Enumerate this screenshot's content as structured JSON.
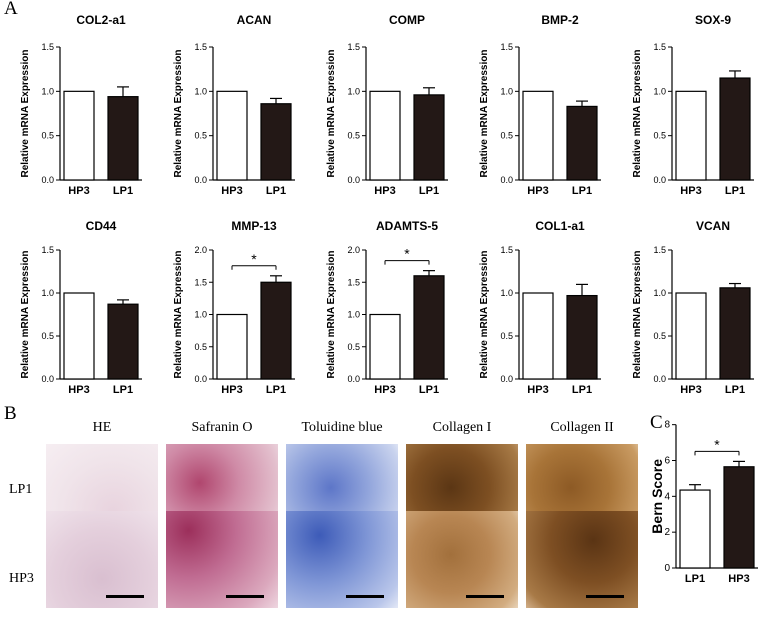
{
  "panels": {
    "a": "A",
    "b": "B",
    "c": "C"
  },
  "charts_a": [
    {
      "title": "COL2-a1",
      "ylabel": "Relative mRNA Expression",
      "categories": [
        "HP3",
        "LP1"
      ],
      "values": [
        1.0,
        0.94
      ],
      "errors": [
        0,
        0.11
      ],
      "ylim": [
        0,
        1.5
      ],
      "ticks": [
        "0.0",
        "0.5",
        "1.0",
        "1.5"
      ],
      "significance": ""
    },
    {
      "title": "ACAN",
      "ylabel": "Relative mRNA Expression",
      "categories": [
        "HP3",
        "LP1"
      ],
      "values": [
        1.0,
        0.86
      ],
      "errors": [
        0,
        0.06
      ],
      "ylim": [
        0,
        1.5
      ],
      "ticks": [
        "0.0",
        "0.5",
        "1.0",
        "1.5"
      ],
      "significance": ""
    },
    {
      "title": "COMP",
      "ylabel": "Relative mRNA Expression",
      "categories": [
        "HP3",
        "LP1"
      ],
      "values": [
        1.0,
        0.96
      ],
      "errors": [
        0,
        0.08
      ],
      "ylim": [
        0,
        1.5
      ],
      "ticks": [
        "0.0",
        "0.5",
        "1.0",
        "1.5"
      ],
      "significance": ""
    },
    {
      "title": "BMP-2",
      "ylabel": "Relative mRNA Expression",
      "categories": [
        "HP3",
        "LP1"
      ],
      "values": [
        1.0,
        0.83
      ],
      "errors": [
        0,
        0.06
      ],
      "ylim": [
        0,
        1.5
      ],
      "ticks": [
        "0.0",
        "0.5",
        "1.0",
        "1.5"
      ],
      "significance": ""
    },
    {
      "title": "SOX-9",
      "ylabel": "Relative mRNA Expression",
      "categories": [
        "HP3",
        "LP1"
      ],
      "values": [
        1.0,
        1.15
      ],
      "errors": [
        0,
        0.08
      ],
      "ylim": [
        0,
        1.5
      ],
      "ticks": [
        "0.0",
        "0.5",
        "1.0",
        "1.5"
      ],
      "significance": ""
    },
    {
      "title": "CD44",
      "ylabel": "Relative mRNA Expression",
      "categories": [
        "HP3",
        "LP1"
      ],
      "values": [
        1.0,
        0.87
      ],
      "errors": [
        0,
        0.05
      ],
      "ylim": [
        0,
        1.5
      ],
      "ticks": [
        "0.0",
        "0.5",
        "1.0",
        "1.5"
      ],
      "significance": ""
    },
    {
      "title": "MMP-13",
      "ylabel": "Relative mRNA Expression",
      "categories": [
        "HP3",
        "LP1"
      ],
      "values": [
        1.0,
        1.5
      ],
      "errors": [
        0,
        0.1
      ],
      "ylim": [
        0,
        2.0
      ],
      "ticks": [
        "0.0",
        "0.5",
        "1.0",
        "1.5",
        "2.0"
      ],
      "significance": "*"
    },
    {
      "title": "ADAMTS-5",
      "ylabel": "Relative mRNA Expression",
      "categories": [
        "HP3",
        "LP1"
      ],
      "values": [
        1.0,
        1.6
      ],
      "errors": [
        0,
        0.08
      ],
      "ylim": [
        0,
        2.0
      ],
      "ticks": [
        "0.0",
        "0.5",
        "1.0",
        "1.5",
        "2.0"
      ],
      "significance": "*"
    },
    {
      "title": "COL1-a1",
      "ylabel": "Relative mRNA Expression",
      "categories": [
        "HP3",
        "LP1"
      ],
      "values": [
        1.0,
        0.97
      ],
      "errors": [
        0,
        0.13
      ],
      "ylim": [
        0,
        1.5
      ],
      "ticks": [
        "0.0",
        "0.5",
        "1.0",
        "1.5"
      ],
      "significance": ""
    },
    {
      "title": "VCAN",
      "ylabel": "Relative mRNA Expression",
      "categories": [
        "HP3",
        "LP1"
      ],
      "values": [
        1.0,
        1.06
      ],
      "errors": [
        0,
        0.05
      ],
      "ylim": [
        0,
        1.5
      ],
      "ticks": [
        "0.0",
        "0.5",
        "1.0",
        "1.5"
      ],
      "significance": ""
    }
  ],
  "chart_data": [
    {
      "type": "bar",
      "title": "COL2-a1",
      "categories": [
        "HP3",
        "LP1"
      ],
      "values": [
        1.0,
        0.94
      ],
      "ylabel": "Relative mRNA Expression",
      "ylim": [
        0,
        1.5
      ]
    },
    {
      "type": "bar",
      "title": "ACAN",
      "categories": [
        "HP3",
        "LP1"
      ],
      "values": [
        1.0,
        0.86
      ],
      "ylabel": "Relative mRNA Expression",
      "ylim": [
        0,
        1.5
      ]
    },
    {
      "type": "bar",
      "title": "COMP",
      "categories": [
        "HP3",
        "LP1"
      ],
      "values": [
        1.0,
        0.96
      ],
      "ylabel": "Relative mRNA Expression",
      "ylim": [
        0,
        1.5
      ]
    },
    {
      "type": "bar",
      "title": "BMP-2",
      "categories": [
        "HP3",
        "LP1"
      ],
      "values": [
        1.0,
        0.83
      ],
      "ylabel": "Relative mRNA Expression",
      "ylim": [
        0,
        1.5
      ]
    },
    {
      "type": "bar",
      "title": "SOX-9",
      "categories": [
        "HP3",
        "LP1"
      ],
      "values": [
        1.0,
        1.15
      ],
      "ylabel": "Relative mRNA Expression",
      "ylim": [
        0,
        1.5
      ]
    },
    {
      "type": "bar",
      "title": "CD44",
      "categories": [
        "HP3",
        "LP1"
      ],
      "values": [
        1.0,
        0.87
      ],
      "ylabel": "Relative mRNA Expression",
      "ylim": [
        0,
        1.5
      ]
    },
    {
      "type": "bar",
      "title": "MMP-13",
      "categories": [
        "HP3",
        "LP1"
      ],
      "values": [
        1.0,
        1.5
      ],
      "ylabel": "Relative mRNA Expression",
      "ylim": [
        0,
        2.0
      ]
    },
    {
      "type": "bar",
      "title": "ADAMTS-5",
      "categories": [
        "HP3",
        "LP1"
      ],
      "values": [
        1.0,
        1.6
      ],
      "ylabel": "Relative mRNA Expression",
      "ylim": [
        0,
        2.0
      ]
    },
    {
      "type": "bar",
      "title": "COL1-a1",
      "categories": [
        "HP3",
        "LP1"
      ],
      "values": [
        1.0,
        0.97
      ],
      "ylabel": "Relative mRNA Expression",
      "ylim": [
        0,
        1.5
      ]
    },
    {
      "type": "bar",
      "title": "VCAN",
      "categories": [
        "HP3",
        "LP1"
      ],
      "values": [
        1.0,
        1.06
      ],
      "ylabel": "Relative mRNA Expression",
      "ylim": [
        0,
        1.5
      ]
    },
    {
      "type": "bar",
      "title": "",
      "categories": [
        "LP1",
        "HP3"
      ],
      "values": [
        4.35,
        5.65
      ],
      "ylabel": "Bern Score",
      "ylim": [
        0,
        8
      ]
    }
  ],
  "chart_c": {
    "ylabel": "Bern Score",
    "categories": [
      "LP1",
      "HP3"
    ],
    "values": [
      4.35,
      5.65
    ],
    "errors": [
      0.3,
      0.3
    ],
    "ylim": [
      0,
      8
    ],
    "ticks": [
      "0",
      "2",
      "4",
      "6",
      "8"
    ],
    "significance": "*"
  },
  "histology": {
    "columns": [
      "HE",
      "Safranin O",
      "Toluidine blue",
      "Collagen I",
      "Collagen II"
    ],
    "rows": [
      "LP1",
      "HP3"
    ],
    "stain_colors": [
      "#e8d6e0",
      "#c97a9a",
      "#8fa2d8",
      "#8a5a2a",
      "#a06a32"
    ]
  },
  "colors": {
    "bar_hp3": "#ffffff",
    "bar_lp1": "#231816"
  }
}
